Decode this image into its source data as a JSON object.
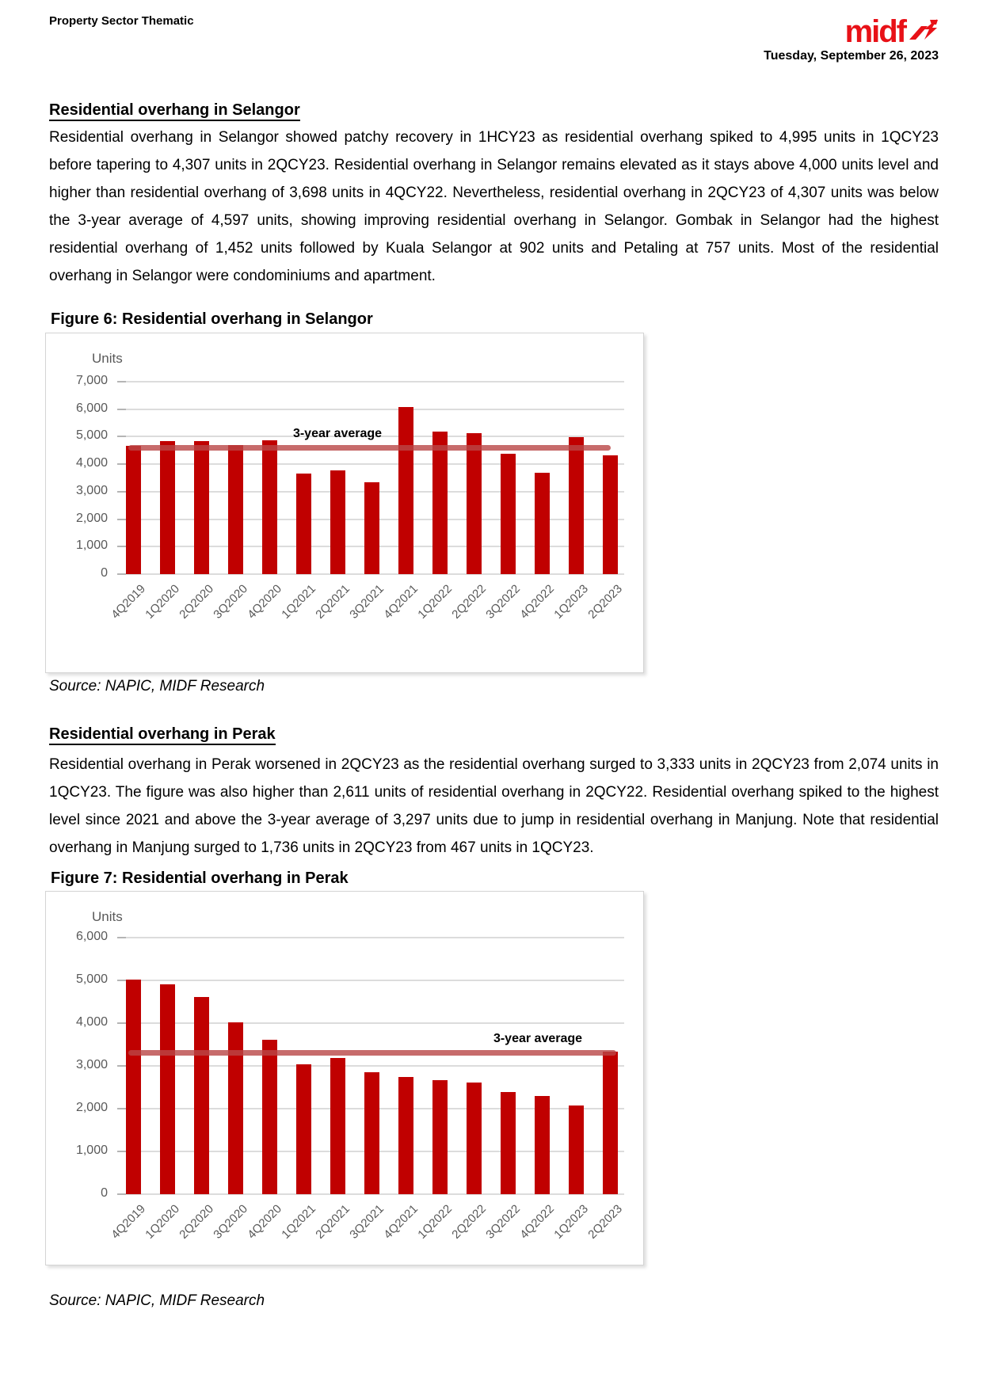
{
  "header": {
    "doc_type": "Property Sector Thematic",
    "logo_text": "midf",
    "logo_color": "#e81117",
    "date": "Tuesday, September 26, 2023"
  },
  "sections": [
    {
      "heading": "Residential overhang in Selangor",
      "paragraph": "Residential overhang in Selangor showed patchy recovery in 1HCY23 as residential overhang spiked to 4,995 units in 1QCY23 before tapering to 4,307 units in 2QCY23. Residential overhang in Selangor remains elevated as it stays above 4,000 units level and higher than residential overhang of 3,698 units in 4QCY22. Nevertheless, residential overhang in 2QCY23 of 4,307 units was below the 3-year average of 4,597 units, showing improving residential overhang in Selangor. Gombak in Selangor had the highest residential overhang of 1,452 units followed by Kuala Selangor at 902 units and Petaling at 757 units. Most of the residential overhang in Selangor were condominiums and apartment.",
      "figure_caption": "Figure 6: Residential overhang in Selangor",
      "source": "Source: NAPIC, MIDF Research"
    },
    {
      "heading": "Residential overhang in Perak",
      "paragraph": "Residential overhang in Perak worsened in 2QCY23 as the residential overhang surged to 3,333 units in 2QCY23 from 2,074 units in 1QCY23. The figure was also higher than 2,611 units of residential overhang in 2QCY22. Residential overhang spiked to the highest level since 2021 and above the 3-year average of 3,297 units due to jump in residential overhang in Manjung. Note that residential overhang in Manjung surged to 1,736 units in 2QCY23 from 467 units in 1QCY23.",
      "figure_caption": "Figure 7: Residential overhang in Perak",
      "source": "Source: NAPIC, MIDF Research"
    }
  ],
  "chart_data": [
    {
      "type": "bar",
      "title": "Figure 6: Residential overhang in Selangor",
      "ylabel": "Units",
      "xlabel": "",
      "categories": [
        "4Q2019",
        "1Q2020",
        "2Q2020",
        "3Q2020",
        "4Q2020",
        "1Q2021",
        "2Q2021",
        "3Q2021",
        "4Q2021",
        "1Q2022",
        "2Q2022",
        "3Q2022",
        "4Q2022",
        "1Q2023",
        "2Q2023"
      ],
      "values": [
        4675,
        4830,
        4850,
        4690,
        4880,
        3650,
        3760,
        3350,
        6090,
        5190,
        5140,
        4370,
        3698,
        4995,
        4307
      ],
      "ylim": [
        0,
        7000
      ],
      "ytick_step": 1000,
      "grid": true,
      "bar_color": "#c00000",
      "average_line": {
        "label": "3-year average",
        "value": 4597,
        "color": "rgba(185,70,70,0.8)"
      }
    },
    {
      "type": "bar",
      "title": "Figure 7: Residential overhang in Perak",
      "ylabel": "Units",
      "xlabel": "",
      "categories": [
        "4Q2019",
        "1Q2020",
        "2Q2020",
        "3Q2020",
        "4Q2020",
        "1Q2021",
        "2Q2021",
        "3Q2021",
        "4Q2021",
        "1Q2022",
        "2Q2022",
        "3Q2022",
        "4Q2022",
        "1Q2023",
        "2Q2023"
      ],
      "values": [
        5020,
        4900,
        4620,
        4020,
        3620,
        3030,
        3190,
        2860,
        2740,
        2660,
        2611,
        2390,
        2300,
        2074,
        3333
      ],
      "ylim": [
        0,
        6000
      ],
      "ytick_step": 1000,
      "grid": true,
      "bar_color": "#c00000",
      "average_line": {
        "label": "3-year average",
        "value": 3297,
        "color": "rgba(185,70,70,0.8)"
      }
    }
  ]
}
